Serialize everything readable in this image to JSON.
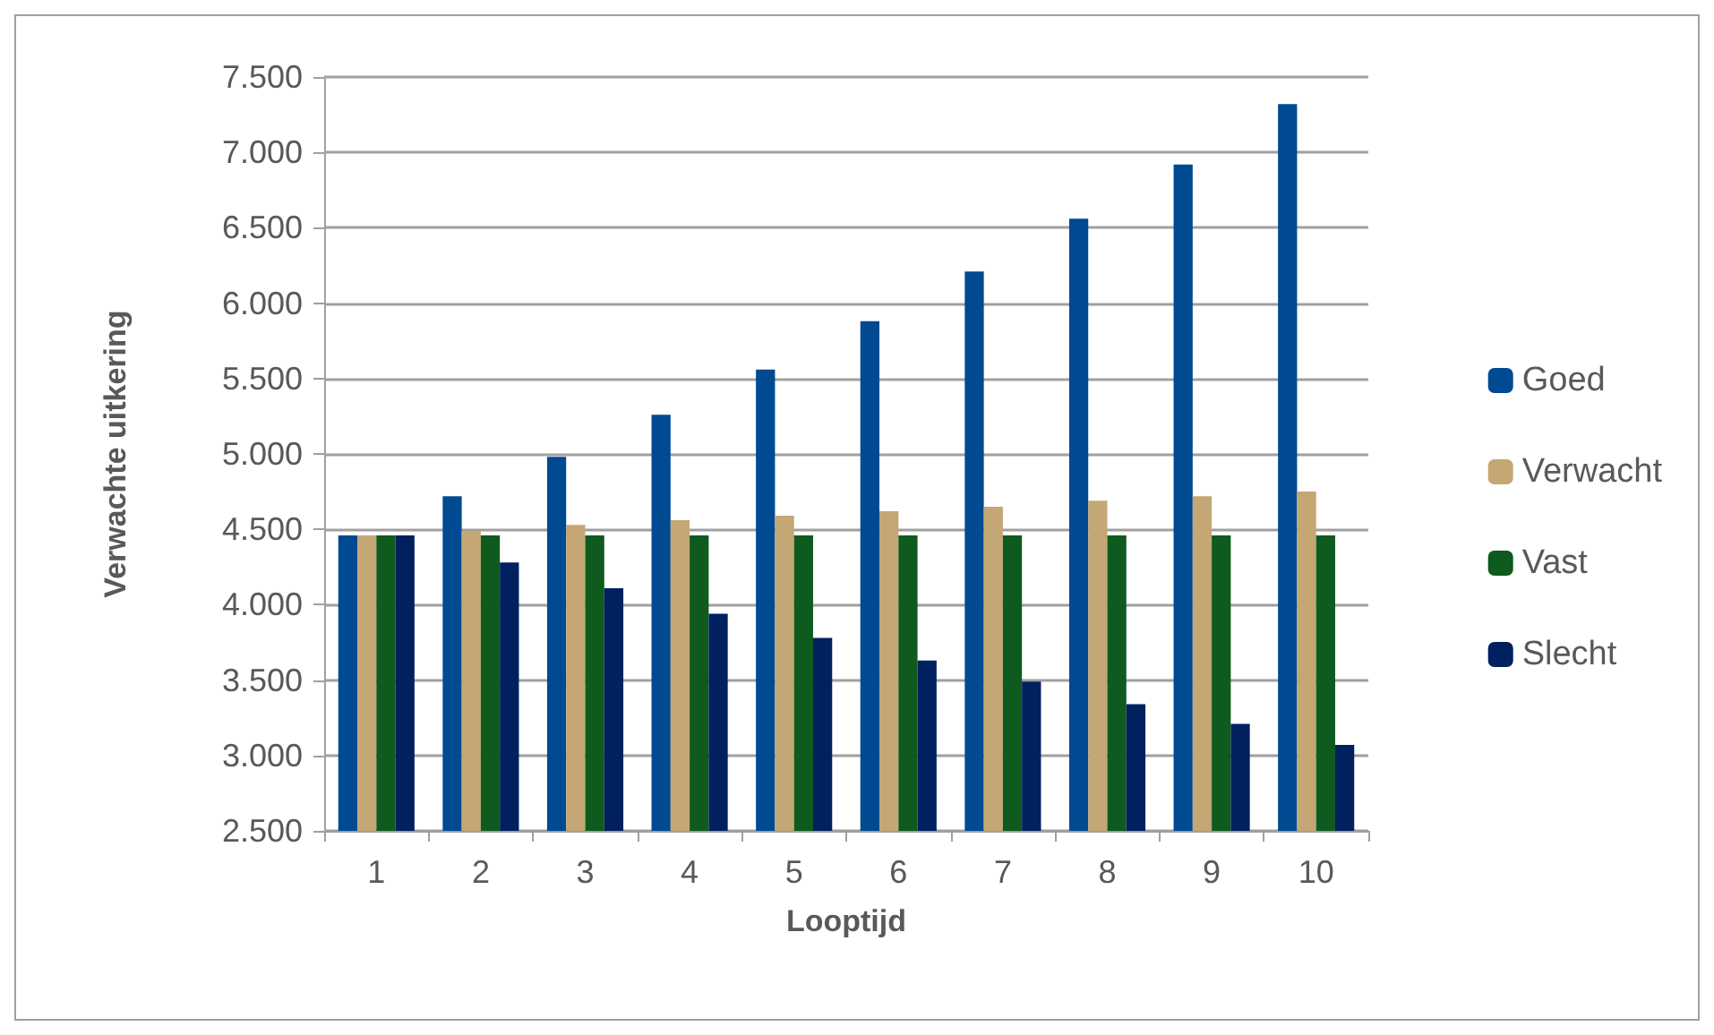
{
  "chart_data": {
    "type": "bar",
    "xlabel": "Looptijd",
    "ylabel": "Verwachte uitkering",
    "categories": [
      "1",
      "2",
      "3",
      "4",
      "5",
      "6",
      "7",
      "8",
      "9",
      "10"
    ],
    "series": [
      {
        "name": "Goed",
        "color": "#004a91",
        "values": [
          4460,
          4720,
          4980,
          5260,
          5560,
          5880,
          6210,
          6560,
          6920,
          7320
        ]
      },
      {
        "name": "Verwacht",
        "color": "#c4a774",
        "values": [
          4460,
          4490,
          4530,
          4560,
          4590,
          4620,
          4650,
          4690,
          4720,
          4750
        ]
      },
      {
        "name": "Vast",
        "color": "#0f5a1e",
        "values": [
          4460,
          4460,
          4460,
          4460,
          4460,
          4460,
          4460,
          4460,
          4460,
          4460
        ]
      },
      {
        "name": "Slecht",
        "color": "#00205f",
        "values": [
          4460,
          4280,
          4110,
          3940,
          3780,
          3630,
          3490,
          3340,
          3210,
          3070
        ]
      }
    ],
    "ylim": [
      2500,
      7500
    ],
    "yticks": [
      {
        "value": 2500,
        "label": "2.500"
      },
      {
        "value": 3000,
        "label": "3.000"
      },
      {
        "value": 3500,
        "label": "3.500"
      },
      {
        "value": 4000,
        "label": "4.000"
      },
      {
        "value": 4500,
        "label": "4.500"
      },
      {
        "value": 5000,
        "label": "5.000"
      },
      {
        "value": 5500,
        "label": "5.500"
      },
      {
        "value": 6000,
        "label": "6.000"
      },
      {
        "value": 6500,
        "label": "6.500"
      },
      {
        "value": 7000,
        "label": "7.000"
      },
      {
        "value": 7500,
        "label": "7.500"
      }
    ],
    "grid": "y",
    "legend": "right"
  }
}
